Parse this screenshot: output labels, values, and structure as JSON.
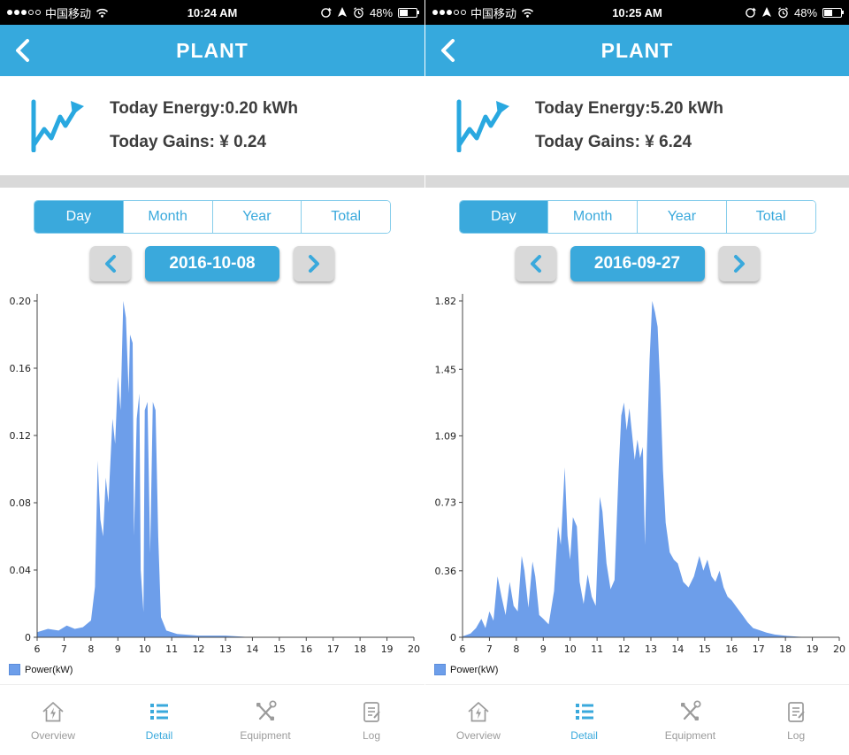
{
  "colors": {
    "header": "#36a9dd",
    "accent": "#3aa9dc",
    "chart_fill": "#6d9eea",
    "gap_gray": "#d9d9d9",
    "inactive_gray": "#9b9b9b"
  },
  "tabs": [
    "Day",
    "Month",
    "Year",
    "Total"
  ],
  "nav": [
    "Overview",
    "Detail",
    "Equipment",
    "Log"
  ],
  "panels": [
    {
      "status": {
        "carrier": "中国移动",
        "time": "10:24 AM",
        "battery": "48%"
      },
      "header": {
        "title": "PLANT"
      },
      "summary": {
        "energy": "Today Energy:0.20 kWh",
        "gains": "Today Gains: ¥ 0.24"
      },
      "date": "2016-10-08"
    },
    {
      "status": {
        "carrier": "中国移动",
        "time": "10:25 AM",
        "battery": "48%"
      },
      "header": {
        "title": "PLANT"
      },
      "summary": {
        "energy": "Today Energy:5.20 kWh",
        "gains": "Today Gains: ¥ 6.24"
      },
      "date": "2016-09-27"
    }
  ],
  "chart_data": [
    {
      "type": "area",
      "title": "",
      "xlabel": "",
      "ylabel": "Power(kW)",
      "xlim": [
        6,
        20
      ],
      "ylim": [
        0,
        0.2
      ],
      "x_ticks": [
        "6",
        "7",
        "8",
        "9",
        "10",
        "11",
        "12",
        "13",
        "14",
        "15",
        "16",
        "17",
        "18",
        "19",
        "20"
      ],
      "y_ticks": [
        "0",
        "0.04",
        "0.08",
        "0.12",
        "0.16",
        "0.20"
      ],
      "grid": false,
      "legend_position": "bottom-left",
      "points": [
        [
          6,
          0.003
        ],
        [
          6.4,
          0.005
        ],
        [
          6.8,
          0.004
        ],
        [
          7.1,
          0.007
        ],
        [
          7.4,
          0.005
        ],
        [
          7.7,
          0.006
        ],
        [
          8.0,
          0.01
        ],
        [
          8.15,
          0.03
        ],
        [
          8.25,
          0.105
        ],
        [
          8.35,
          0.07
        ],
        [
          8.45,
          0.06
        ],
        [
          8.55,
          0.095
        ],
        [
          8.65,
          0.08
        ],
        [
          8.8,
          0.13
        ],
        [
          8.9,
          0.115
        ],
        [
          9.0,
          0.155
        ],
        [
          9.1,
          0.135
        ],
        [
          9.2,
          0.2
        ],
        [
          9.3,
          0.19
        ],
        [
          9.4,
          0.145
        ],
        [
          9.45,
          0.18
        ],
        [
          9.55,
          0.175
        ],
        [
          9.6,
          0.06
        ],
        [
          9.7,
          0.13
        ],
        [
          9.8,
          0.145
        ],
        [
          9.85,
          0.04
        ],
        [
          9.95,
          0.015
        ],
        [
          10.0,
          0.135
        ],
        [
          10.1,
          0.14
        ],
        [
          10.2,
          0.05
        ],
        [
          10.3,
          0.14
        ],
        [
          10.4,
          0.135
        ],
        [
          10.5,
          0.06
        ],
        [
          10.6,
          0.012
        ],
        [
          10.8,
          0.004
        ],
        [
          11.2,
          0.002
        ],
        [
          12,
          0.001
        ],
        [
          13,
          0.001
        ],
        [
          14,
          0
        ],
        [
          16,
          0
        ],
        [
          18,
          0
        ],
        [
          20,
          0
        ]
      ]
    },
    {
      "type": "area",
      "title": "",
      "xlabel": "",
      "ylabel": "Power(kW)",
      "xlim": [
        6,
        20
      ],
      "ylim": [
        0,
        1.82
      ],
      "x_ticks": [
        "6",
        "7",
        "8",
        "9",
        "10",
        "11",
        "12",
        "13",
        "14",
        "15",
        "16",
        "17",
        "18",
        "19",
        "20"
      ],
      "y_ticks": [
        "0",
        "0.36",
        "0.73",
        "1.09",
        "1.45",
        "1.82"
      ],
      "grid": false,
      "legend_position": "bottom-left",
      "points": [
        [
          6,
          0.005
        ],
        [
          6.3,
          0.02
        ],
        [
          6.5,
          0.05
        ],
        [
          6.7,
          0.1
        ],
        [
          6.85,
          0.05
        ],
        [
          7.0,
          0.14
        ],
        [
          7.15,
          0.09
        ],
        [
          7.3,
          0.33
        ],
        [
          7.45,
          0.22
        ],
        [
          7.6,
          0.12
        ],
        [
          7.75,
          0.3
        ],
        [
          7.9,
          0.17
        ],
        [
          8.05,
          0.14
        ],
        [
          8.2,
          0.44
        ],
        [
          8.3,
          0.36
        ],
        [
          8.45,
          0.16
        ],
        [
          8.6,
          0.41
        ],
        [
          8.7,
          0.33
        ],
        [
          8.85,
          0.12
        ],
        [
          9.0,
          0.1
        ],
        [
          9.2,
          0.07
        ],
        [
          9.4,
          0.25
        ],
        [
          9.55,
          0.6
        ],
        [
          9.65,
          0.5
        ],
        [
          9.8,
          0.92
        ],
        [
          9.9,
          0.55
        ],
        [
          10.0,
          0.42
        ],
        [
          10.1,
          0.65
        ],
        [
          10.25,
          0.6
        ],
        [
          10.35,
          0.3
        ],
        [
          10.5,
          0.18
        ],
        [
          10.65,
          0.34
        ],
        [
          10.8,
          0.22
        ],
        [
          10.95,
          0.17
        ],
        [
          11.1,
          0.76
        ],
        [
          11.2,
          0.68
        ],
        [
          11.35,
          0.4
        ],
        [
          11.5,
          0.26
        ],
        [
          11.65,
          0.31
        ],
        [
          11.8,
          0.9
        ],
        [
          11.9,
          1.2
        ],
        [
          12.0,
          1.27
        ],
        [
          12.1,
          1.12
        ],
        [
          12.2,
          1.24
        ],
        [
          12.3,
          1.1
        ],
        [
          12.4,
          0.96
        ],
        [
          12.5,
          1.07
        ],
        [
          12.6,
          0.97
        ],
        [
          12.7,
          1.03
        ],
        [
          12.78,
          0.5
        ],
        [
          12.85,
          1.0
        ],
        [
          12.95,
          1.5
        ],
        [
          13.05,
          1.82
        ],
        [
          13.15,
          1.76
        ],
        [
          13.25,
          1.68
        ],
        [
          13.35,
          1.35
        ],
        [
          13.45,
          0.9
        ],
        [
          13.55,
          0.62
        ],
        [
          13.7,
          0.46
        ],
        [
          13.85,
          0.42
        ],
        [
          14.0,
          0.4
        ],
        [
          14.2,
          0.3
        ],
        [
          14.4,
          0.27
        ],
        [
          14.6,
          0.33
        ],
        [
          14.8,
          0.44
        ],
        [
          14.95,
          0.36
        ],
        [
          15.1,
          0.42
        ],
        [
          15.25,
          0.33
        ],
        [
          15.4,
          0.3
        ],
        [
          15.55,
          0.36
        ],
        [
          15.7,
          0.27
        ],
        [
          15.85,
          0.22
        ],
        [
          16.0,
          0.2
        ],
        [
          16.2,
          0.16
        ],
        [
          16.4,
          0.12
        ],
        [
          16.6,
          0.08
        ],
        [
          16.8,
          0.05
        ],
        [
          17.0,
          0.04
        ],
        [
          17.3,
          0.025
        ],
        [
          17.6,
          0.015
        ],
        [
          18.0,
          0.008
        ],
        [
          18.5,
          0.003
        ],
        [
          19,
          0
        ],
        [
          20,
          0
        ]
      ]
    }
  ]
}
